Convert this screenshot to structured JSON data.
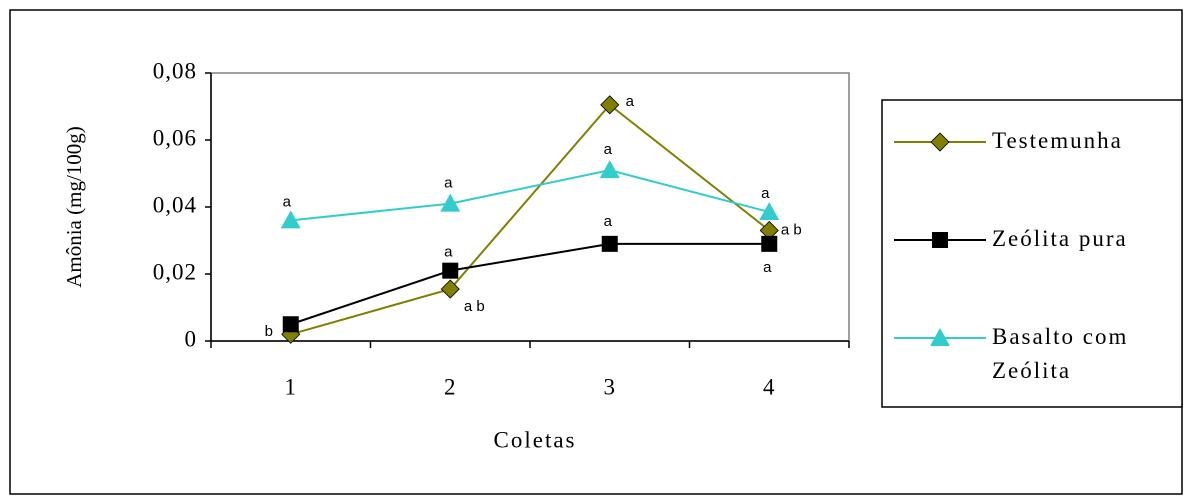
{
  "chart_data": {
    "type": "line",
    "x_label": "Coletas",
    "y_label": "Amônia (mg/100g)",
    "categories": [
      "1",
      "2",
      "3",
      "4"
    ],
    "ylim": [
      0,
      0.08
    ],
    "yticks": [
      0,
      {
        "value": 0.02,
        "label": "0,02"
      },
      {
        "value": 0.04,
        "label": "0,04"
      },
      {
        "value": 0.06,
        "label": "0,06"
      },
      {
        "value": 0.08,
        "label": "0,08"
      }
    ],
    "legend": "right",
    "series": [
      {
        "name": "Testemunha",
        "color": "#808000",
        "marker": "diamond",
        "values": [
          0.002,
          0.0155,
          0.0705,
          0.033
        ],
        "letters": [
          null,
          "a b",
          "a",
          "a b"
        ]
      },
      {
        "name": "Zeólita pura",
        "color": "#000000",
        "marker": "square",
        "values": [
          0.005,
          0.021,
          0.029,
          0.029
        ],
        "letters": [
          "b",
          "a",
          "a",
          "a"
        ]
      },
      {
        "name": "Basalto com Zeólita",
        "color": "#33cccc",
        "marker": "triangle",
        "values": [
          0.036,
          0.041,
          0.051,
          0.0385
        ],
        "letters": [
          "a",
          "a",
          "a",
          "a"
        ]
      }
    ]
  }
}
